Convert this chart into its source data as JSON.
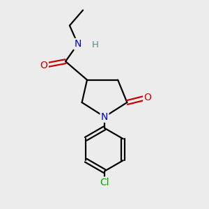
{
  "background_color": "#ececec",
  "atom_colors": {
    "C": "#000000",
    "N": "#0000cc",
    "O": "#cc0000",
    "Cl": "#00aa00",
    "H": "#4a9090"
  },
  "bond_color": "#000000",
  "bond_width": 1.6,
  "figsize": [
    3.0,
    3.0
  ],
  "dpi": 100,
  "xlim": [
    0,
    10
  ],
  "ylim": [
    0,
    10
  ]
}
